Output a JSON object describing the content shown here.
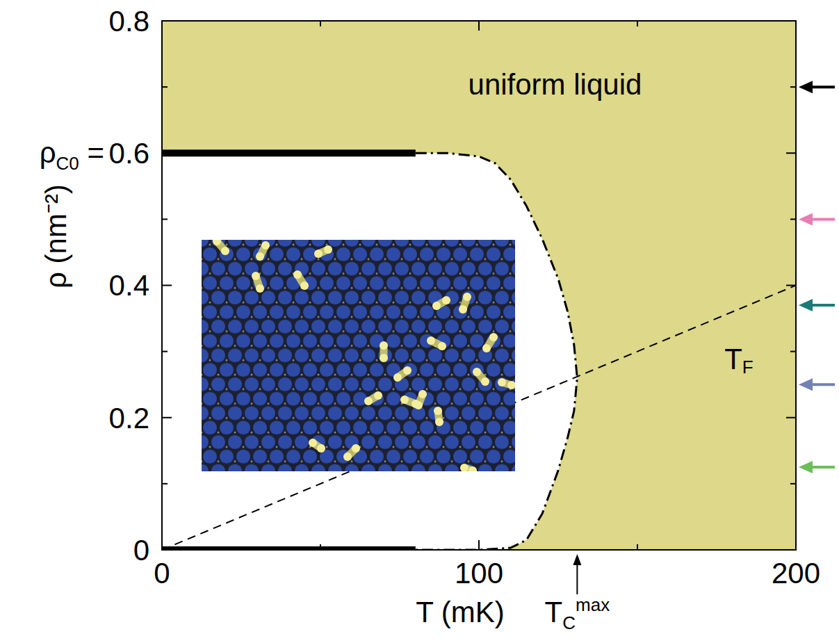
{
  "chart_data": {
    "type": "line",
    "xlabel": "T (mK)",
    "ylabel": "ρ (nm⁻²)",
    "xlim": [
      0,
      200
    ],
    "xticks": [
      0,
      100,
      200
    ],
    "ylim": [
      0,
      0.8
    ],
    "yticks": [
      0,
      0.2,
      0.4,
      0.6,
      0.8
    ],
    "grid": false,
    "series": [
      {
        "type": "area",
        "color": "#ffffff",
        "x": [
          0,
          80,
          90,
          100,
          105,
          110,
          115,
          120,
          125,
          128,
          130,
          131
        ],
        "low": [
          0,
          0,
          0,
          0,
          0,
          0.003,
          0.015,
          0.055,
          0.12,
          0.17,
          0.21,
          0.26
        ],
        "values": [
          0.6,
          0.6,
          0.6,
          0.595,
          0.585,
          0.56,
          0.52,
          0.47,
          0.41,
          0.36,
          0.31,
          0.26
        ]
      },
      {
        "type": "line",
        "line_style": "solid",
        "color": "#000000",
        "x": [
          0,
          80
        ],
        "values": [
          0.6,
          0.6
        ]
      },
      {
        "type": "line",
        "line_style": "solid",
        "color": "#000000",
        "x": [
          0,
          80
        ],
        "values": [
          0,
          0
        ]
      },
      {
        "type": "line",
        "line_style": "dashdot",
        "color": "#000000",
        "x": [
          80,
          90,
          100,
          105,
          110,
          115,
          120,
          125,
          128,
          130,
          131,
          130,
          128,
          125,
          120,
          115,
          110,
          100,
          90,
          80
        ],
        "values": [
          0.6,
          0.6,
          0.595,
          0.585,
          0.56,
          0.52,
          0.47,
          0.41,
          0.36,
          0.31,
          0.26,
          0.21,
          0.17,
          0.12,
          0.055,
          0.015,
          0.003,
          0,
          0,
          0
        ]
      },
      {
        "type": "line",
        "line_style": "dashed",
        "color": "#000000",
        "x": [
          0,
          200
        ],
        "values": [
          0,
          0.4
        ]
      }
    ],
    "annotations": [
      {
        "text": "uniform liquid",
        "x": 124,
        "y": 0.7,
        "color": "#ddd88a"
      },
      {
        "text": "T",
        "sub": "F",
        "x": 182,
        "y": 0.285
      },
      {
        "text": "ρ",
        "sub": "C0",
        "suffix": " =",
        "y": 0.6
      },
      {
        "text": "T",
        "sub": "C",
        "sup": "max",
        "x": 131
      }
    ],
    "arrows": [
      {
        "y": 0.7,
        "color": "#000000"
      },
      {
        "y": 0.5,
        "color": "#e87db4"
      },
      {
        "y": 0.37,
        "color": "#1b7b78"
      },
      {
        "y": 0.25,
        "color": "#7181b5"
      },
      {
        "y": 0.125,
        "color": "#6cbf58"
      }
    ]
  }
}
